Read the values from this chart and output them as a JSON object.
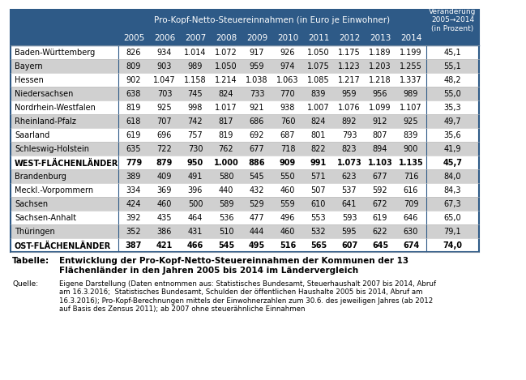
{
  "header_main": "Pro-Kopf-Netto-Steuereinnahmen (in Euro je Einwohner)",
  "header_change": "Veränderung\n2005→2014\n(in Prozent)",
  "years": [
    "2005",
    "2006",
    "2007",
    "2008",
    "2009",
    "2010",
    "2011",
    "2012",
    "2013",
    "2014"
  ],
  "rows": [
    {
      "name": "Baden-Württemberg",
      "values": [
        "826",
        "934",
        "1.014",
        "1.072",
        "917",
        "926",
        "1.050",
        "1.175",
        "1.189",
        "1.199"
      ],
      "change": "45,1",
      "bold": false,
      "bg": "white"
    },
    {
      "name": "Bayern",
      "values": [
        "809",
        "903",
        "989",
        "1.050",
        "959",
        "974",
        "1.075",
        "1.123",
        "1.203",
        "1.255"
      ],
      "change": "55,1",
      "bold": false,
      "bg": "light"
    },
    {
      "name": "Hessen",
      "values": [
        "902",
        "1.047",
        "1.158",
        "1.214",
        "1.038",
        "1.063",
        "1.085",
        "1.217",
        "1.218",
        "1.337"
      ],
      "change": "48,2",
      "bold": false,
      "bg": "white"
    },
    {
      "name": "Niedersachsen",
      "values": [
        "638",
        "703",
        "745",
        "824",
        "733",
        "770",
        "839",
        "959",
        "956",
        "989"
      ],
      "change": "55,0",
      "bold": false,
      "bg": "light"
    },
    {
      "name": "Nordrhein-Westfalen",
      "values": [
        "819",
        "925",
        "998",
        "1.017",
        "921",
        "938",
        "1.007",
        "1.076",
        "1.099",
        "1.107"
      ],
      "change": "35,3",
      "bold": false,
      "bg": "white"
    },
    {
      "name": "Rheinland-Pfalz",
      "values": [
        "618",
        "707",
        "742",
        "817",
        "686",
        "760",
        "824",
        "892",
        "912",
        "925"
      ],
      "change": "49,7",
      "bold": false,
      "bg": "light"
    },
    {
      "name": "Saarland",
      "values": [
        "619",
        "696",
        "757",
        "819",
        "692",
        "687",
        "801",
        "793",
        "807",
        "839"
      ],
      "change": "35,6",
      "bold": false,
      "bg": "white"
    },
    {
      "name": "Schleswig-Holstein",
      "values": [
        "635",
        "722",
        "730",
        "762",
        "677",
        "718",
        "822",
        "823",
        "894",
        "900"
      ],
      "change": "41,9",
      "bold": false,
      "bg": "light"
    },
    {
      "name": "WEST-FLÄCHENLÄNDER",
      "values": [
        "779",
        "879",
        "950",
        "1.000",
        "886",
        "909",
        "991",
        "1.073",
        "1.103",
        "1.135"
      ],
      "change": "45,7",
      "bold": true,
      "bg": "white"
    },
    {
      "name": "Brandenburg",
      "values": [
        "389",
        "409",
        "491",
        "580",
        "545",
        "550",
        "571",
        "623",
        "677",
        "716"
      ],
      "change": "84,0",
      "bold": false,
      "bg": "light"
    },
    {
      "name": "Meckl.-Vorpommern",
      "values": [
        "334",
        "369",
        "396",
        "440",
        "432",
        "460",
        "507",
        "537",
        "592",
        "616"
      ],
      "change": "84,3",
      "bold": false,
      "bg": "white"
    },
    {
      "name": "Sachsen",
      "values": [
        "424",
        "460",
        "500",
        "589",
        "529",
        "559",
        "610",
        "641",
        "672",
        "709"
      ],
      "change": "67,3",
      "bold": false,
      "bg": "light"
    },
    {
      "name": "Sachsen-Anhalt",
      "values": [
        "392",
        "435",
        "464",
        "536",
        "477",
        "496",
        "553",
        "593",
        "619",
        "646"
      ],
      "change": "65,0",
      "bold": false,
      "bg": "white"
    },
    {
      "name": "Thüringen",
      "values": [
        "352",
        "386",
        "431",
        "510",
        "444",
        "460",
        "532",
        "595",
        "622",
        "630"
      ],
      "change": "79,1",
      "bold": false,
      "bg": "light"
    },
    {
      "name": "OST-FLÄCHENLÄNDER",
      "values": [
        "387",
        "421",
        "466",
        "545",
        "495",
        "516",
        "565",
        "607",
        "645",
        "674"
      ],
      "change": "74,0",
      "bold": true,
      "bg": "white"
    }
  ],
  "tabelle_label": "Tabelle:",
  "tabelle_text": "Entwicklung der Pro-Kopf-Netto-Steuereinnahmen der Kommunen der 13\nFlächenländer in den Jahren 2005 bis 2014 im Ländervergleich",
  "quelle_label": "Quelle:",
  "quelle_text": "Eigene Darstellung (Daten entnommen aus: Statistisches Bundesamt, Steuerhaushalt 2007 bis 2014, Abruf\nam 16.3.2016;  Statistisches Bundesamt, Schulden der öffentlichen Haushalte 2005 bis 2014, Abruf am\n16.3.2016); Pro-Kopf-Berechnungen mittels der Einwohnerzahlen zum 30.6. des jeweiligen Jahres (ab 2012\nauf Basis des Zensus 2011); ab 2007 ohne steuerähnliche Einnahmen",
  "header_bg": "#2E5A87",
  "header_fg": "#FFFFFF",
  "row_light_bg": "#D0D0D0",
  "row_white_bg": "#FFFFFF",
  "table_border": "#2E5A87"
}
